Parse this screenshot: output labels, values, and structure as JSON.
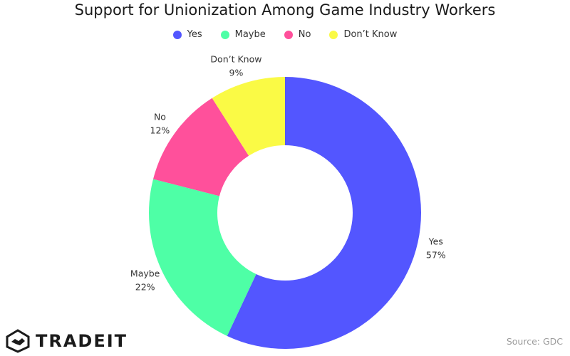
{
  "chart_data": {
    "type": "pie",
    "title": "Support for Unionization Among Game Industry Workers",
    "categories": [
      "Yes",
      "Maybe",
      "No",
      "Don’t Know"
    ],
    "values": [
      57,
      22,
      12,
      9
    ],
    "value_labels": [
      "57%",
      "22%",
      "12%",
      "9%"
    ],
    "colors": [
      "#5356ff",
      "#4effa6",
      "#ff509b",
      "#fafa45"
    ],
    "donut": true,
    "legend_position": "top-center"
  },
  "legend": [
    {
      "label": "Yes",
      "color": "#5356ff"
    },
    {
      "label": "Maybe",
      "color": "#4effa6"
    },
    {
      "label": "No",
      "color": "#ff509b"
    },
    {
      "label": "Don’t Know",
      "color": "#fafa45"
    }
  ],
  "brand": {
    "name": "TRADEIT",
    "icon": "handshake-icon"
  },
  "source": "Source: GDC"
}
